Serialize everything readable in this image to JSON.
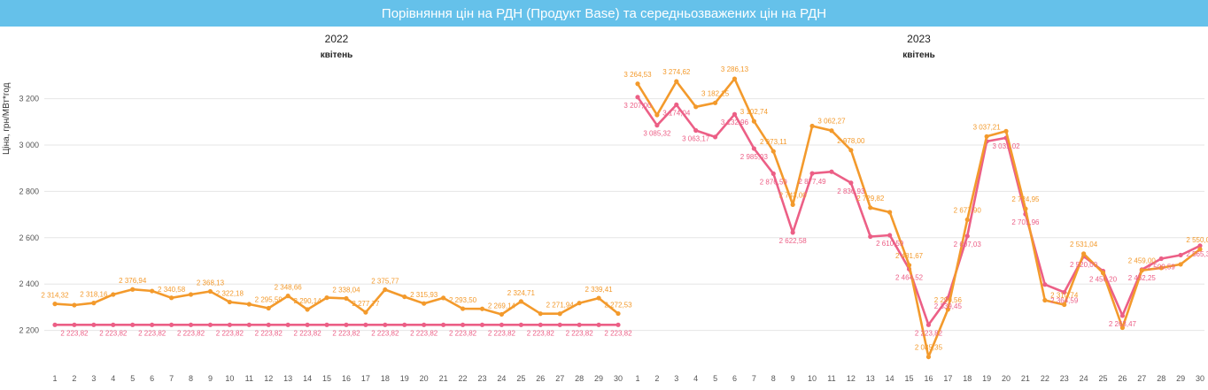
{
  "title": "Порівняння цін на РДН (Продукт Base) та середньозважених цін на РДН",
  "colors": {
    "base": "#f39a2c",
    "avg": "#ec5f86",
    "title_bg": "#65c1ea",
    "grid": "#e6e6e6"
  },
  "chart_data": [
    {
      "type": "line",
      "year_label": "2022",
      "month_label": "квітень",
      "ylabel": "Ціна, грн/МВт*год",
      "ylim": [
        2080,
        3340
      ],
      "yticks": [
        2200,
        2400,
        2600,
        2800,
        3000,
        3200
      ],
      "ytick_labels": [
        "2 200",
        "2 400",
        "2 600",
        "2 800",
        "3 000",
        "3 200"
      ],
      "x": [
        1,
        2,
        3,
        4,
        5,
        6,
        7,
        8,
        9,
        10,
        11,
        12,
        13,
        14,
        15,
        16,
        17,
        18,
        19,
        20,
        21,
        22,
        23,
        24,
        25,
        26,
        27,
        28,
        29,
        30
      ],
      "series": [
        {
          "values": [
            2314.32,
            2309.1,
            2318.16,
            2355.0,
            2376.94,
            2370.0,
            2340.58,
            2355.0,
            2368.13,
            2322.18,
            2313.0,
            2295.59,
            2348.66,
            2290.14,
            2341.0,
            2338.04,
            2277.77,
            2375.77,
            2345.0,
            2315.93,
            2340.0,
            2293.5,
            2293.0,
            2269.14,
            2324.71,
            2272.0,
            2271.94,
            2318.0,
            2339.41,
            2272.53
          ],
          "labels": [
            "2 314,32",
            "",
            "2 318,16",
            "",
            "2 376,94",
            "",
            "2 340,58",
            "",
            "2 368,13",
            "2 322,18",
            "",
            "2 295,59",
            "2 348,66",
            "2 290,14",
            "",
            "2 338,04",
            "2 277,77",
            "2 375,77",
            "",
            "2 315,93",
            "",
            "2 293,50",
            "",
            "2 269,14",
            "2 324,71",
            "",
            "2 271,94",
            "",
            "2 339,41",
            "2 272,53"
          ]
        },
        {
          "values": [
            2223.82,
            2223.82,
            2223.82,
            2223.82,
            2223.82,
            2223.82,
            2223.82,
            2223.82,
            2223.82,
            2223.82,
            2223.82,
            2223.82,
            2223.82,
            2223.82,
            2223.82,
            2223.82,
            2223.82,
            2223.82,
            2223.82,
            2223.82,
            2223.82,
            2223.82,
            2223.82,
            2223.82,
            2223.82,
            2223.82,
            2223.82,
            2223.82,
            2223.82,
            2223.82
          ],
          "labels": [
            "",
            "2 223,82",
            "",
            "2 223,82",
            "",
            "2 223,82",
            "",
            "2 223,82",
            "",
            "2 223,82",
            "",
            "2 223,82",
            "",
            "2 223,82",
            "",
            "2 223,82",
            "",
            "2 223,82",
            "",
            "2 223,82",
            "",
            "2 223,82",
            "",
            "2 223,82",
            "",
            "2 223,82",
            "",
            "2 223,82",
            "",
            "2 223,82"
          ]
        }
      ]
    },
    {
      "type": "line",
      "year_label": "2023",
      "month_label": "квітень",
      "ylim": [
        2080,
        3340
      ],
      "x": [
        1,
        2,
        3,
        4,
        5,
        6,
        7,
        8,
        9,
        10,
        11,
        12,
        13,
        14,
        15,
        16,
        17,
        18,
        19,
        20,
        21,
        22,
        23,
        24,
        25,
        26,
        27,
        28,
        29,
        30
      ],
      "series": [
        {
          "values": [
            3264.53,
            3130.0,
            3274.62,
            3165.0,
            3182.25,
            3286.13,
            3102.74,
            2973.11,
            2743.0,
            3082.27,
            3062.27,
            2978.0,
            2729.82,
            2710.0,
            2481.67,
            2085.35,
            2290.56,
            2677.9,
            3037.21,
            3060.0,
            2724.95,
            2330.0,
            2310.74,
            2531.04,
            2448.0,
            2211.69,
            2459.0,
            2470.0,
            2485.0,
            2550.05
          ],
          "labels": [
            "3 264,53",
            "",
            "3 274,62",
            "",
            "3 182,25",
            "3 286,13",
            "3 102,74",
            "2 973,11",
            "2 743,00",
            "",
            "3 062,27",
            "2 978,00",
            "2 729,82",
            "",
            "2 481,67",
            "2 085,35",
            "2 290,56",
            "2 677,90",
            "3 037,21",
            "",
            "2 724,95",
            "",
            "2 310,74",
            "2 531,04",
            "",
            "",
            "2 459,00",
            "",
            "",
            "2 550,05"
          ]
        },
        {
          "values": [
            3207.0,
            3085.32,
            3174.04,
            3063.17,
            3035.0,
            3132.96,
            2985.03,
            2876.59,
            2622.58,
            2877.49,
            2885.0,
            2836.93,
            2605.0,
            2610.59,
            2464.52,
            2223.82,
            2339.45,
            2607.03,
            3016.0,
            3031.02,
            2701.96,
            2398.0,
            2364.59,
            2520.0,
            2456.2,
            2263.47,
            2462.25,
            2509.59,
            2525.0,
            2565.3
          ],
          "labels": [
            "3 207,00",
            "3 085,32",
            "3 174,04",
            "3 063,17",
            "",
            "3 132,96",
            "2 985,03",
            "2 876,59",
            "2 622,58",
            "2 877,49",
            "",
            "2 836,93",
            "",
            "2 610,59",
            "2 464,52",
            "2 223,82",
            "2 339,45",
            "2 607,03",
            "",
            "3 031,02",
            "2 701,96",
            "",
            "2 364,59",
            "2 520,00",
            "2 456,20",
            "2 263,47",
            "2 462,25",
            "2 509,59",
            "",
            "2 565,30"
          ]
        }
      ]
    }
  ]
}
